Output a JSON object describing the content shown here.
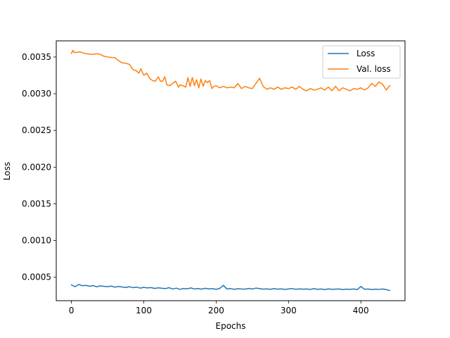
{
  "chart_data": {
    "type": "line",
    "title": "",
    "xlabel": "Epochs",
    "ylabel": "Loss",
    "xlim": [
      -21,
      461
    ],
    "ylim": [
      0.000181,
      0.00372
    ],
    "xticks": [
      0,
      100,
      200,
      300,
      400
    ],
    "xtick_labels": [
      "0",
      "100",
      "200",
      "300",
      "400"
    ],
    "yticks": [
      0.0005,
      0.001,
      0.0015,
      0.002,
      0.0025,
      0.003,
      0.0035
    ],
    "ytick_labels": [
      "0.0005",
      "0.0010",
      "0.0015",
      "0.0020",
      "0.0025",
      "0.0030",
      "0.0035"
    ],
    "grid": false,
    "legend_placement": "top-right",
    "series": [
      {
        "name": "Loss",
        "color": "#1f77b4",
        "x": [
          0,
          5,
          10,
          15,
          20,
          25,
          30,
          35,
          40,
          45,
          50,
          55,
          60,
          65,
          70,
          75,
          80,
          85,
          90,
          95,
          100,
          105,
          110,
          115,
          120,
          125,
          130,
          135,
          140,
          145,
          150,
          155,
          160,
          165,
          170,
          175,
          180,
          185,
          190,
          195,
          200,
          205,
          210,
          215,
          220,
          225,
          230,
          235,
          240,
          245,
          250,
          255,
          260,
          265,
          270,
          275,
          280,
          285,
          290,
          295,
          300,
          305,
          310,
          315,
          320,
          325,
          330,
          335,
          340,
          345,
          350,
          355,
          360,
          365,
          370,
          375,
          380,
          385,
          390,
          395,
          400,
          405,
          410,
          415,
          420,
          425,
          430,
          435,
          440
        ],
        "y": [
          0.000395,
          0.000372,
          0.000402,
          0.000385,
          0.00039,
          0.000378,
          0.000386,
          0.00037,
          0.000382,
          0.000376,
          0.000372,
          0.00038,
          0.000365,
          0.000374,
          0.000368,
          0.00036,
          0.000372,
          0.000358,
          0.000366,
          0.000352,
          0.000362,
          0.000355,
          0.00036,
          0.000348,
          0.000356,
          0.00035,
          0.000346,
          0.000358,
          0.00034,
          0.000352,
          0.000335,
          0.000348,
          0.000342,
          0.000355,
          0.00034,
          0.000346,
          0.000338,
          0.00035,
          0.000342,
          0.000345,
          0.000336,
          0.000348,
          0.00039,
          0.00034,
          0.000346,
          0.000336,
          0.000344,
          0.00034,
          0.000338,
          0.000348,
          0.00034,
          0.000352,
          0.000345,
          0.000338,
          0.000342,
          0.000336,
          0.000345,
          0.000338,
          0.000342,
          0.000334,
          0.00034,
          0.000346,
          0.000336,
          0.000342,
          0.000338,
          0.00034,
          0.000334,
          0.000345,
          0.000336,
          0.00034,
          0.000332,
          0.000342,
          0.000336,
          0.000338,
          0.00034,
          0.000332,
          0.000338,
          0.000336,
          0.00034,
          0.000332,
          0.000375,
          0.000336,
          0.00034,
          0.000332,
          0.000338,
          0.000335,
          0.00034,
          0.000332,
          0.00032
        ]
      },
      {
        "name": "Val. loss",
        "color": "#ff7f0e",
        "x": [
          0,
          2,
          4,
          8,
          12,
          16,
          20,
          25,
          30,
          35,
          40,
          45,
          50,
          55,
          60,
          65,
          70,
          75,
          80,
          85,
          90,
          93,
          96,
          100,
          104,
          108,
          112,
          116,
          120,
          123,
          126,
          129,
          132,
          136,
          140,
          144,
          148,
          150,
          154,
          158,
          161,
          164,
          167,
          170,
          173,
          176,
          179,
          182,
          185,
          188,
          191,
          194,
          197,
          200,
          205,
          210,
          215,
          220,
          225,
          230,
          235,
          240,
          245,
          250,
          255,
          260,
          265,
          270,
          275,
          280,
          285,
          290,
          295,
          300,
          305,
          310,
          315,
          320,
          325,
          330,
          335,
          340,
          345,
          350,
          355,
          360,
          365,
          370,
          375,
          380,
          385,
          390,
          395,
          400,
          405,
          410,
          415,
          420,
          425,
          430,
          435,
          440
        ],
        "y": [
          0.00355,
          0.00359,
          0.00356,
          0.003565,
          0.00357,
          0.003555,
          0.003545,
          0.00354,
          0.003535,
          0.003545,
          0.003535,
          0.00351,
          0.0035,
          0.003495,
          0.00349,
          0.00345,
          0.00342,
          0.003415,
          0.0034,
          0.00333,
          0.00331,
          0.00328,
          0.00334,
          0.00325,
          0.00328,
          0.00321,
          0.00318,
          0.00317,
          0.00323,
          0.00317,
          0.00317,
          0.00323,
          0.00312,
          0.00311,
          0.00314,
          0.00317,
          0.00309,
          0.00312,
          0.00311,
          0.00309,
          0.00322,
          0.0031,
          0.00322,
          0.00311,
          0.00319,
          0.00308,
          0.0032,
          0.0031,
          0.00318,
          0.00315,
          0.00318,
          0.00307,
          0.0031,
          0.00311,
          0.00308,
          0.0031,
          0.00308,
          0.00309,
          0.00308,
          0.00314,
          0.00307,
          0.0031,
          0.00308,
          0.00307,
          0.00314,
          0.00321,
          0.0031,
          0.00306,
          0.00308,
          0.00306,
          0.00309,
          0.00306,
          0.00308,
          0.00307,
          0.00309,
          0.00306,
          0.0031,
          0.00306,
          0.00304,
          0.00307,
          0.00305,
          0.00306,
          0.00308,
          0.00305,
          0.00309,
          0.00304,
          0.0031,
          0.00304,
          0.00308,
          0.00306,
          0.00304,
          0.00307,
          0.00306,
          0.00308,
          0.00305,
          0.00308,
          0.00314,
          0.0031,
          0.00316,
          0.00313,
          0.00305,
          0.00311
        ]
      }
    ]
  }
}
